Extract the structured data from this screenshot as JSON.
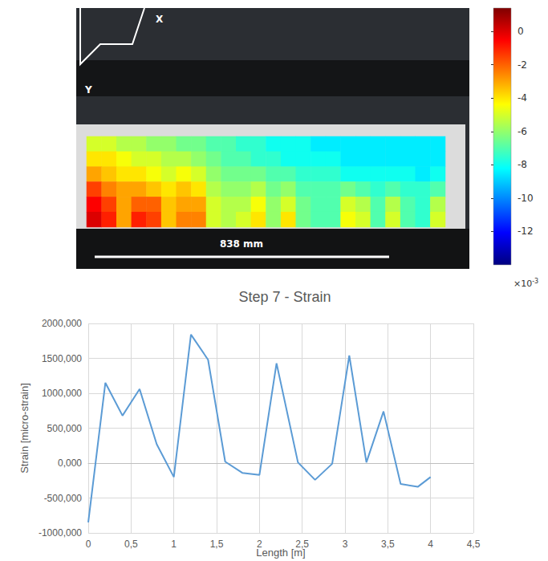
{
  "chart_data": [
    {
      "type": "heatmap",
      "annotations": [
        "X",
        "Y",
        "838 mm"
      ],
      "cells": [
        [
          -5,
          -5,
          -5.5,
          -5.5,
          -6,
          -6,
          -6.5,
          -6.5,
          -7,
          -7,
          -7.5,
          -7.5,
          -8,
          -8,
          -8,
          -8.5,
          -8.5,
          -8.5,
          -8.5,
          -8.5,
          -8.5,
          -8.5,
          -8.5,
          -8.5
        ],
        [
          -4,
          -4,
          -4.5,
          -5,
          -5,
          -5.5,
          -5.5,
          -6,
          -6.5,
          -7,
          -7,
          -7.5,
          -7.5,
          -8,
          -8,
          -8,
          -8,
          -8.5,
          -8.5,
          -8.5,
          -8.5,
          -8.5,
          -8.5,
          -8.5
        ],
        [
          -3,
          -3.5,
          -4,
          -4,
          -4.5,
          -5,
          -4.5,
          -5,
          -6,
          -6.5,
          -6.5,
          -6.5,
          -7,
          -7,
          -7.5,
          -7.5,
          -7.5,
          -8,
          -8,
          -8,
          -8,
          -8,
          -8.5,
          -8
        ],
        [
          -1.5,
          -2.5,
          -3,
          -3,
          -3.5,
          -4,
          -3.5,
          -4,
          -5.5,
          -6,
          -6,
          -5.5,
          -6.5,
          -6,
          -7,
          -7,
          -7,
          -6.5,
          -7,
          -7.5,
          -7,
          -7.5,
          -7.5,
          -7
        ],
        [
          -0.5,
          -1.5,
          -3,
          -2,
          -2,
          -3.5,
          -3,
          -3,
          -5,
          -5.5,
          -5.5,
          -4.5,
          -6,
          -5,
          -6.5,
          -7,
          -7,
          -5,
          -5.5,
          -7,
          -5.5,
          -7,
          -7.5,
          -5.5
        ],
        [
          0,
          -1,
          -3,
          -1,
          -1.5,
          -3.5,
          -2.5,
          -2.5,
          -5,
          -5.5,
          -5,
          -4,
          -6,
          -4,
          -6.5,
          -7,
          -7,
          -4.5,
          -5,
          -7,
          -5,
          -7,
          -7.5,
          -5
        ]
      ],
      "color_range": [
        -14,
        1.4
      ],
      "color_ticks": [
        0,
        -2,
        -4,
        -6,
        -8,
        -10,
        -12
      ],
      "color_scale_label": {
        "base": "×10",
        "exponent": "-3"
      }
    },
    {
      "type": "line",
      "title": "Step 7 - Strain",
      "x_label": "Length [m]",
      "y_label": "Strain [micro-strain]",
      "x": [
        0,
        0.2,
        0.4,
        0.6,
        0.8,
        1.0,
        1.2,
        1.4,
        1.6,
        1.8,
        2.0,
        2.2,
        2.45,
        2.65,
        2.85,
        3.05,
        3.25,
        3.45,
        3.65,
        3.85,
        4.0
      ],
      "values": [
        -850,
        1150,
        680,
        1060,
        270,
        -200,
        1840,
        1480,
        20,
        -140,
        -170,
        1430,
        10,
        -240,
        -10,
        1540,
        10,
        740,
        -300,
        -340,
        -200
      ],
      "color": "#5b9bd5",
      "xlim": [
        0,
        4.5
      ],
      "ylim": [
        -1000,
        2000
      ],
      "xticks": [
        0,
        {
          "value": 0.5,
          "label": "0,5"
        },
        1,
        {
          "value": 1.5,
          "label": "1,5"
        },
        2,
        {
          "value": 2.5,
          "label": "2,5"
        },
        3,
        {
          "value": 3.5,
          "label": "3,5"
        },
        4,
        {
          "value": 4.5,
          "label": "4,5"
        }
      ],
      "yticks": [
        {
          "value": -1000,
          "label": "-1000,000"
        },
        {
          "value": -500,
          "label": "-500,000"
        },
        {
          "value": 0,
          "label": "0,000"
        },
        {
          "value": 500,
          "label": "500,000"
        },
        {
          "value": 1000,
          "label": "1000,000"
        },
        {
          "value": 1500,
          "label": "1500,000"
        },
        {
          "value": 2000,
          "label": "2000,000"
        }
      ],
      "grid": true
    }
  ]
}
